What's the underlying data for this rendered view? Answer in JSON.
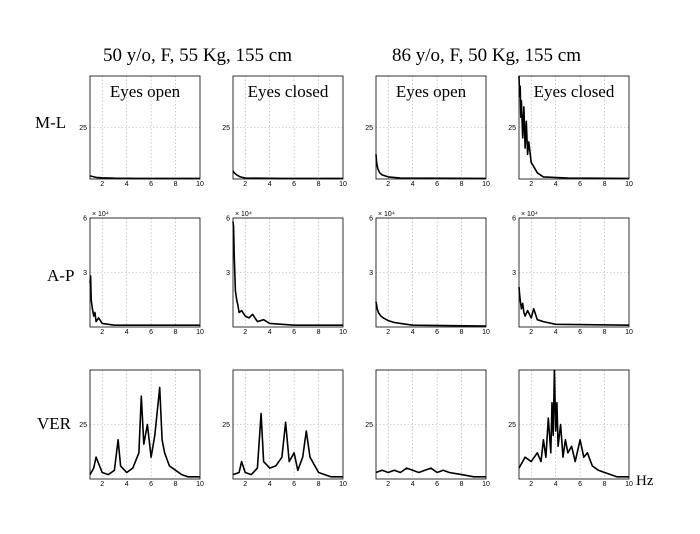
{
  "subjects": [
    "50 y/o, F, 55 Kg, 155 cm",
    "86 y/o, F, 50 Kg, 155 cm"
  ],
  "row_labels": [
    "M-L",
    "A-P",
    "VER"
  ],
  "column_labels": [
    "Eyes open",
    "Eyes closed",
    "Eyes open",
    "Eyes closed"
  ],
  "x_unit": "Hz",
  "chart_data": {
    "type": "line",
    "layout": "3x4 grid of spectra",
    "grid": true,
    "x_ticks": [
      "2",
      "4",
      "6",
      "8",
      "10"
    ],
    "xlim": [
      1,
      10
    ],
    "rows": [
      {
        "label": "M-L",
        "y_ticks": [
          "25"
        ],
        "ylim": [
          0,
          50
        ],
        "exponent": ""
      },
      {
        "label": "A-P",
        "y_ticks": [
          "3",
          "6"
        ],
        "ylim": [
          0,
          6
        ],
        "exponent": "× 10⁴"
      },
      {
        "label": "VER",
        "y_ticks": [
          "25"
        ],
        "ylim": [
          0,
          50
        ],
        "exponent": ""
      }
    ],
    "panels": [
      {
        "row": 0,
        "col": 0,
        "x": [
          1,
          1.2,
          1.5,
          2,
          3,
          5,
          8,
          10
        ],
        "values": [
          1.5,
          1.2,
          0.8,
          0.6,
          0.4,
          0.3,
          0.3,
          0.3
        ]
      },
      {
        "row": 0,
        "col": 1,
        "x": [
          1,
          1.1,
          1.3,
          1.6,
          2,
          3,
          5,
          10
        ],
        "values": [
          4,
          3,
          2,
          1,
          0.5,
          0.4,
          0.3,
          0.3
        ]
      },
      {
        "row": 0,
        "col": 2,
        "x": [
          1,
          1.05,
          1.15,
          1.3,
          1.5,
          2,
          3,
          10
        ],
        "values": [
          12,
          8,
          5,
          3,
          2,
          1,
          0.5,
          0.3
        ]
      },
      {
        "row": 0,
        "col": 3,
        "x": [
          1,
          1.05,
          1.1,
          1.15,
          1.2,
          1.3,
          1.4,
          1.5,
          1.6,
          1.7,
          1.8,
          2,
          2.2,
          2.5,
          3,
          5,
          10
        ],
        "values": [
          50,
          40,
          45,
          30,
          38,
          20,
          35,
          15,
          28,
          12,
          18,
          8,
          6,
          3,
          1,
          0.5,
          0.3
        ]
      },
      {
        "row": 1,
        "col": 0,
        "x": [
          1,
          1.05,
          1.1,
          1.2,
          1.3,
          1.4,
          1.5,
          1.7,
          2,
          2.5,
          3,
          4,
          6,
          10
        ],
        "values": [
          2.4,
          2.8,
          1.5,
          1.0,
          0.6,
          0.8,
          0.3,
          0.5,
          0.2,
          0.15,
          0.1,
          0.1,
          0.1,
          0.1
        ]
      },
      {
        "row": 1,
        "col": 1,
        "x": [
          1,
          1.05,
          1.1,
          1.15,
          1.2,
          1.3,
          1.4,
          1.5,
          1.7,
          2,
          2.3,
          2.6,
          3,
          3.5,
          4,
          6,
          10
        ],
        "values": [
          5.8,
          5.5,
          4.0,
          3.0,
          2.0,
          1.5,
          1.2,
          0.8,
          0.9,
          0.6,
          0.5,
          0.7,
          0.3,
          0.4,
          0.2,
          0.1,
          0.1
        ]
      },
      {
        "row": 1,
        "col": 2,
        "x": [
          1,
          1.1,
          1.2,
          1.4,
          1.6,
          2,
          2.5,
          3,
          4,
          10
        ],
        "values": [
          1.4,
          1.0,
          0.8,
          0.6,
          0.5,
          0.35,
          0.25,
          0.2,
          0.1,
          0.05
        ]
      },
      {
        "row": 1,
        "col": 3,
        "x": [
          1,
          1.05,
          1.1,
          1.2,
          1.3,
          1.4,
          1.5,
          1.7,
          2,
          2.2,
          2.5,
          3,
          4,
          10
        ],
        "values": [
          2.2,
          1.8,
          1.5,
          1.0,
          1.3,
          0.8,
          0.6,
          0.9,
          0.5,
          1.0,
          0.4,
          0.3,
          0.15,
          0.1
        ]
      },
      {
        "row": 2,
        "col": 0,
        "x": [
          1,
          1.3,
          1.5,
          2,
          2.5,
          3,
          3.3,
          3.5,
          4,
          4.5,
          5,
          5.2,
          5.4,
          5.7,
          6,
          6.3,
          6.7,
          6.9,
          7.1,
          7.5,
          8,
          8.5,
          9,
          10
        ],
        "values": [
          2,
          5,
          10,
          3,
          2,
          4,
          18,
          6,
          3,
          5,
          12,
          38,
          16,
          25,
          10,
          20,
          42,
          18,
          12,
          6,
          4,
          2,
          1,
          1
        ]
      },
      {
        "row": 2,
        "col": 1,
        "x": [
          1,
          1.5,
          1.7,
          2,
          2.5,
          3,
          3.3,
          3.5,
          4,
          4.5,
          5,
          5.3,
          5.6,
          6,
          6.3,
          6.7,
          7,
          7.3,
          8,
          9,
          10
        ],
        "values": [
          2,
          3,
          8,
          3,
          2,
          5,
          30,
          8,
          5,
          6,
          10,
          26,
          8,
          12,
          4,
          10,
          22,
          10,
          3,
          1,
          1
        ]
      },
      {
        "row": 2,
        "col": 2,
        "x": [
          1,
          1.5,
          2,
          2.5,
          3,
          3.5,
          4,
          4.5,
          5,
          5.5,
          6,
          6.5,
          7,
          8,
          9,
          10
        ],
        "values": [
          3,
          4,
          3,
          4,
          3,
          5,
          4,
          3,
          4,
          5,
          3,
          4,
          3,
          2,
          1,
          1
        ]
      },
      {
        "row": 2,
        "col": 3,
        "x": [
          1,
          1.5,
          2,
          2.5,
          2.8,
          3,
          3.2,
          3.4,
          3.6,
          3.7,
          3.8,
          3.9,
          4,
          4.1,
          4.2,
          4.4,
          4.6,
          4.8,
          5,
          5.3,
          5.6,
          6,
          6.3,
          6.6,
          7,
          7.5,
          8,
          9,
          10
        ],
        "values": [
          5,
          10,
          8,
          12,
          8,
          18,
          10,
          28,
          12,
          35,
          20,
          55,
          22,
          35,
          15,
          25,
          10,
          18,
          12,
          15,
          8,
          18,
          10,
          12,
          6,
          4,
          3,
          1,
          1
        ]
      }
    ]
  }
}
